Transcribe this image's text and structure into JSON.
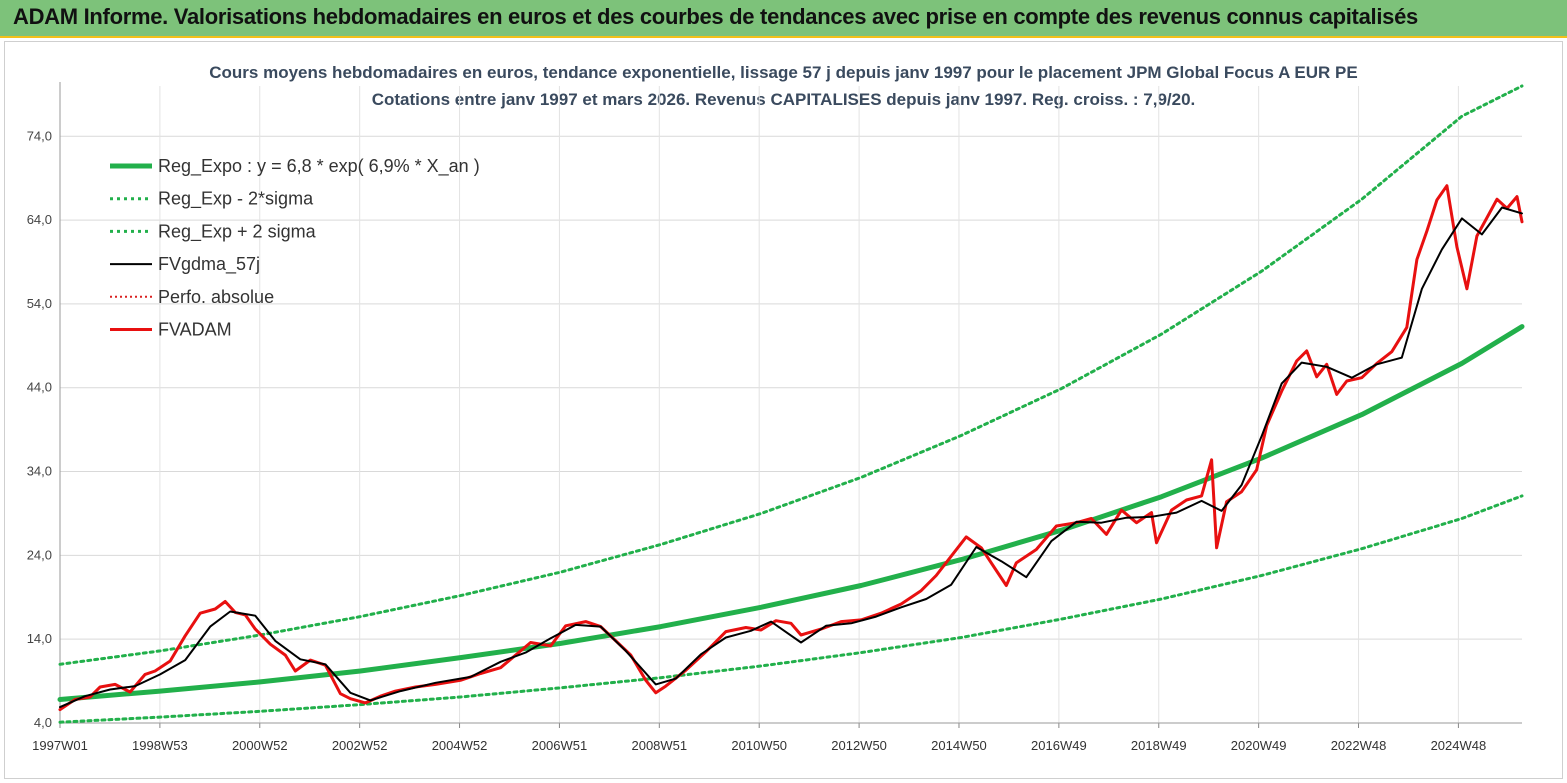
{
  "header": {
    "title": "ADAM Informe. Valorisations hebdomadaires en euros et des courbes de tendances avec prise en compte des revenus connus capitalisés"
  },
  "chart_data": {
    "type": "line",
    "title": "Cours moyens hebdomadaires en euros, tendance exponentielle, lissage 57 j depuis janv 1997  pour le placement JPM Global Focus A EUR PE",
    "subtitle": "Cotations entre janv 1997 et mars 2026. Revenus  CAPITALISES  depuis janv 1997. Reg. croiss. : 7,9/20.",
    "xlabel": "",
    "ylabel": "",
    "x_tick_labels": [
      "1997W01",
      "1998W53",
      "2000W52",
      "2002W52",
      "2004W52",
      "2006W51",
      "2008W51",
      "2010W50",
      "2012W50",
      "2014W50",
      "2016W49",
      "2018W49",
      "2020W49",
      "2022W48",
      "2024W48"
    ],
    "y_tick_labels": [
      "4,0",
      "14,0",
      "24,0",
      "34,0",
      "44,0",
      "54,0",
      "64,0",
      "74,0"
    ],
    "y_ticks": [
      4,
      14,
      24,
      34,
      44,
      54,
      64,
      74
    ],
    "xlim": [
      1997.0,
      2026.2
    ],
    "ylim": [
      4,
      80
    ],
    "grid": true,
    "legend_position": "top-left",
    "colors": {
      "reg_expo": "#22b04b",
      "band": "#22b04b",
      "fvgdma": "#000000",
      "perfo": "#d92020",
      "fvadam": "#e81010"
    },
    "series": [
      {
        "name": "Reg_Expo : y = 6,8 * exp( 6,9% *  X_an )",
        "style": "thick-solid",
        "x": [
          1997.0,
          1999.0,
          2001.0,
          2003.0,
          2005.0,
          2007.0,
          2009.0,
          2011.0,
          2013.0,
          2015.0,
          2017.0,
          2019.0,
          2021.0,
          2023.0,
          2025.0,
          2026.2
        ],
        "y": [
          6.8,
          7.8,
          8.9,
          10.2,
          11.8,
          13.5,
          15.5,
          17.8,
          20.4,
          23.5,
          27.0,
          31.0,
          35.6,
          40.8,
          46.9,
          51.3
        ]
      },
      {
        "name": "Reg_Exp - 2*sigma",
        "style": "dotted",
        "x": [
          1997.0,
          1999.0,
          2001.0,
          2003.0,
          2005.0,
          2007.0,
          2009.0,
          2011.0,
          2013.0,
          2015.0,
          2017.0,
          2019.0,
          2021.0,
          2023.0,
          2025.0,
          2026.2
        ],
        "y": [
          4.1,
          4.7,
          5.4,
          6.2,
          7.1,
          8.2,
          9.4,
          10.8,
          12.4,
          14.2,
          16.4,
          18.8,
          21.6,
          24.8,
          28.4,
          31.1
        ]
      },
      {
        "name": "Reg_Exp + 2 sigma",
        "style": "dotted",
        "x": [
          1997.0,
          1999.0,
          2001.0,
          2003.0,
          2005.0,
          2007.0,
          2009.0,
          2011.0,
          2013.0,
          2015.0,
          2017.0,
          2019.0,
          2021.0,
          2023.0,
          2025.0,
          2026.2
        ],
        "y": [
          11.0,
          12.6,
          14.5,
          16.7,
          19.2,
          22.0,
          25.3,
          29.0,
          33.3,
          38.3,
          43.9,
          50.4,
          57.9,
          66.5,
          76.4,
          80.0
        ]
      },
      {
        "name": "FVgdma_57j",
        "style": "thin-solid",
        "x": [
          1997.0,
          1997.5,
          1998.0,
          1998.5,
          1999.0,
          1999.5,
          2000.0,
          2000.4,
          2000.9,
          2001.3,
          2001.8,
          2002.3,
          2002.8,
          2003.2,
          2003.8,
          2004.5,
          2005.2,
          2005.8,
          2006.3,
          2006.8,
          2007.3,
          2007.8,
          2008.3,
          2008.9,
          2009.3,
          2009.8,
          2010.3,
          2010.8,
          2011.2,
          2011.8,
          2012.3,
          2012.8,
          2013.3,
          2013.8,
          2014.3,
          2014.8,
          2015.3,
          2015.8,
          2016.3,
          2016.8,
          2017.3,
          2017.8,
          2018.3,
          2018.8,
          2019.3,
          2019.8,
          2020.2,
          2020.6,
          2021.0,
          2021.4,
          2021.8,
          2022.3,
          2022.8,
          2023.3,
          2023.8,
          2024.2,
          2024.6,
          2025.0,
          2025.4,
          2025.8,
          2026.2
        ],
        "y": [
          5.9,
          7.2,
          8.0,
          8.4,
          9.8,
          11.5,
          15.5,
          17.3,
          16.8,
          13.8,
          11.6,
          11.0,
          7.6,
          6.7,
          7.8,
          8.8,
          9.5,
          11.3,
          12.4,
          14.1,
          15.7,
          15.5,
          12.6,
          8.6,
          9.3,
          12.2,
          14.2,
          15.0,
          16.1,
          13.6,
          15.6,
          15.9,
          16.7,
          17.8,
          18.8,
          20.5,
          25.0,
          23.3,
          21.4,
          25.7,
          28.0,
          27.9,
          28.5,
          28.6,
          29.1,
          30.5,
          29.3,
          32.4,
          38.2,
          44.5,
          47.0,
          46.5,
          45.2,
          46.8,
          47.6,
          55.8,
          60.5,
          64.2,
          62.3,
          65.5,
          64.8
        ]
      },
      {
        "name": "Perfo. absolue",
        "style": "dotted",
        "x": [],
        "y": []
      },
      {
        "name": "FVADAM",
        "style": "thick-solid",
        "x": [
          1997.0,
          1997.3,
          1997.6,
          1997.8,
          1998.1,
          1998.4,
          1998.7,
          1998.9,
          1999.2,
          1999.5,
          1999.8,
          2000.1,
          2000.3,
          2000.5,
          2000.7,
          2000.9,
          2001.2,
          2001.5,
          2001.7,
          2002.0,
          2002.3,
          2002.6,
          2002.8,
          2003.1,
          2003.4,
          2003.7,
          2004.1,
          2004.5,
          2005.0,
          2005.4,
          2005.8,
          2006.1,
          2006.4,
          2006.8,
          2007.1,
          2007.5,
          2007.8,
          2008.1,
          2008.4,
          2008.7,
          2008.9,
          2009.1,
          2009.5,
          2009.9,
          2010.3,
          2010.7,
          2011.0,
          2011.3,
          2011.6,
          2011.8,
          2012.2,
          2012.6,
          2013.0,
          2013.4,
          2013.8,
          2014.2,
          2014.5,
          2014.8,
          2015.1,
          2015.4,
          2015.7,
          2015.9,
          2016.1,
          2016.5,
          2016.9,
          2017.3,
          2017.6,
          2017.9,
          2018.2,
          2018.5,
          2018.8,
          2018.9,
          2019.2,
          2019.5,
          2019.8,
          2020.0,
          2020.1,
          2020.3,
          2020.6,
          2020.9,
          2021.1,
          2021.4,
          2021.7,
          2021.9,
          2022.1,
          2022.3,
          2022.5,
          2022.7,
          2023.0,
          2023.3,
          2023.6,
          2023.9,
          2024.1,
          2024.3,
          2024.5,
          2024.7,
          2024.9,
          2025.1,
          2025.3,
          2025.5,
          2025.7,
          2025.9,
          2026.1,
          2026.2
        ],
        "y": [
          5.6,
          6.8,
          7.1,
          8.3,
          8.6,
          7.7,
          9.8,
          10.2,
          11.4,
          14.4,
          17.1,
          17.6,
          18.5,
          17.2,
          16.9,
          15.2,
          13.4,
          12.1,
          10.2,
          11.5,
          10.9,
          7.5,
          6.9,
          6.4,
          7.2,
          7.8,
          8.3,
          8.6,
          9.1,
          9.9,
          10.6,
          12.1,
          13.6,
          13.2,
          15.6,
          16.1,
          15.5,
          13.8,
          12.1,
          9.1,
          7.6,
          8.4,
          10.3,
          12.5,
          14.9,
          15.4,
          15.1,
          16.2,
          15.9,
          14.5,
          15.2,
          16.1,
          16.3,
          17.1,
          18.2,
          19.8,
          21.6,
          23.9,
          26.2,
          24.9,
          22.2,
          20.4,
          23.1,
          24.7,
          27.5,
          27.9,
          28.4,
          26.5,
          29.4,
          27.9,
          29.1,
          25.5,
          29.4,
          30.6,
          31.1,
          35.4,
          24.9,
          30.4,
          31.6,
          34.2,
          39.5,
          43.6,
          47.2,
          48.4,
          45.3,
          46.8,
          43.2,
          44.8,
          45.2,
          46.9,
          48.3,
          51.2,
          59.3,
          62.7,
          66.4,
          68.1,
          60.8,
          55.8,
          62.1,
          64.3,
          66.5,
          65.4,
          66.8,
          63.8
        ]
      }
    ]
  }
}
